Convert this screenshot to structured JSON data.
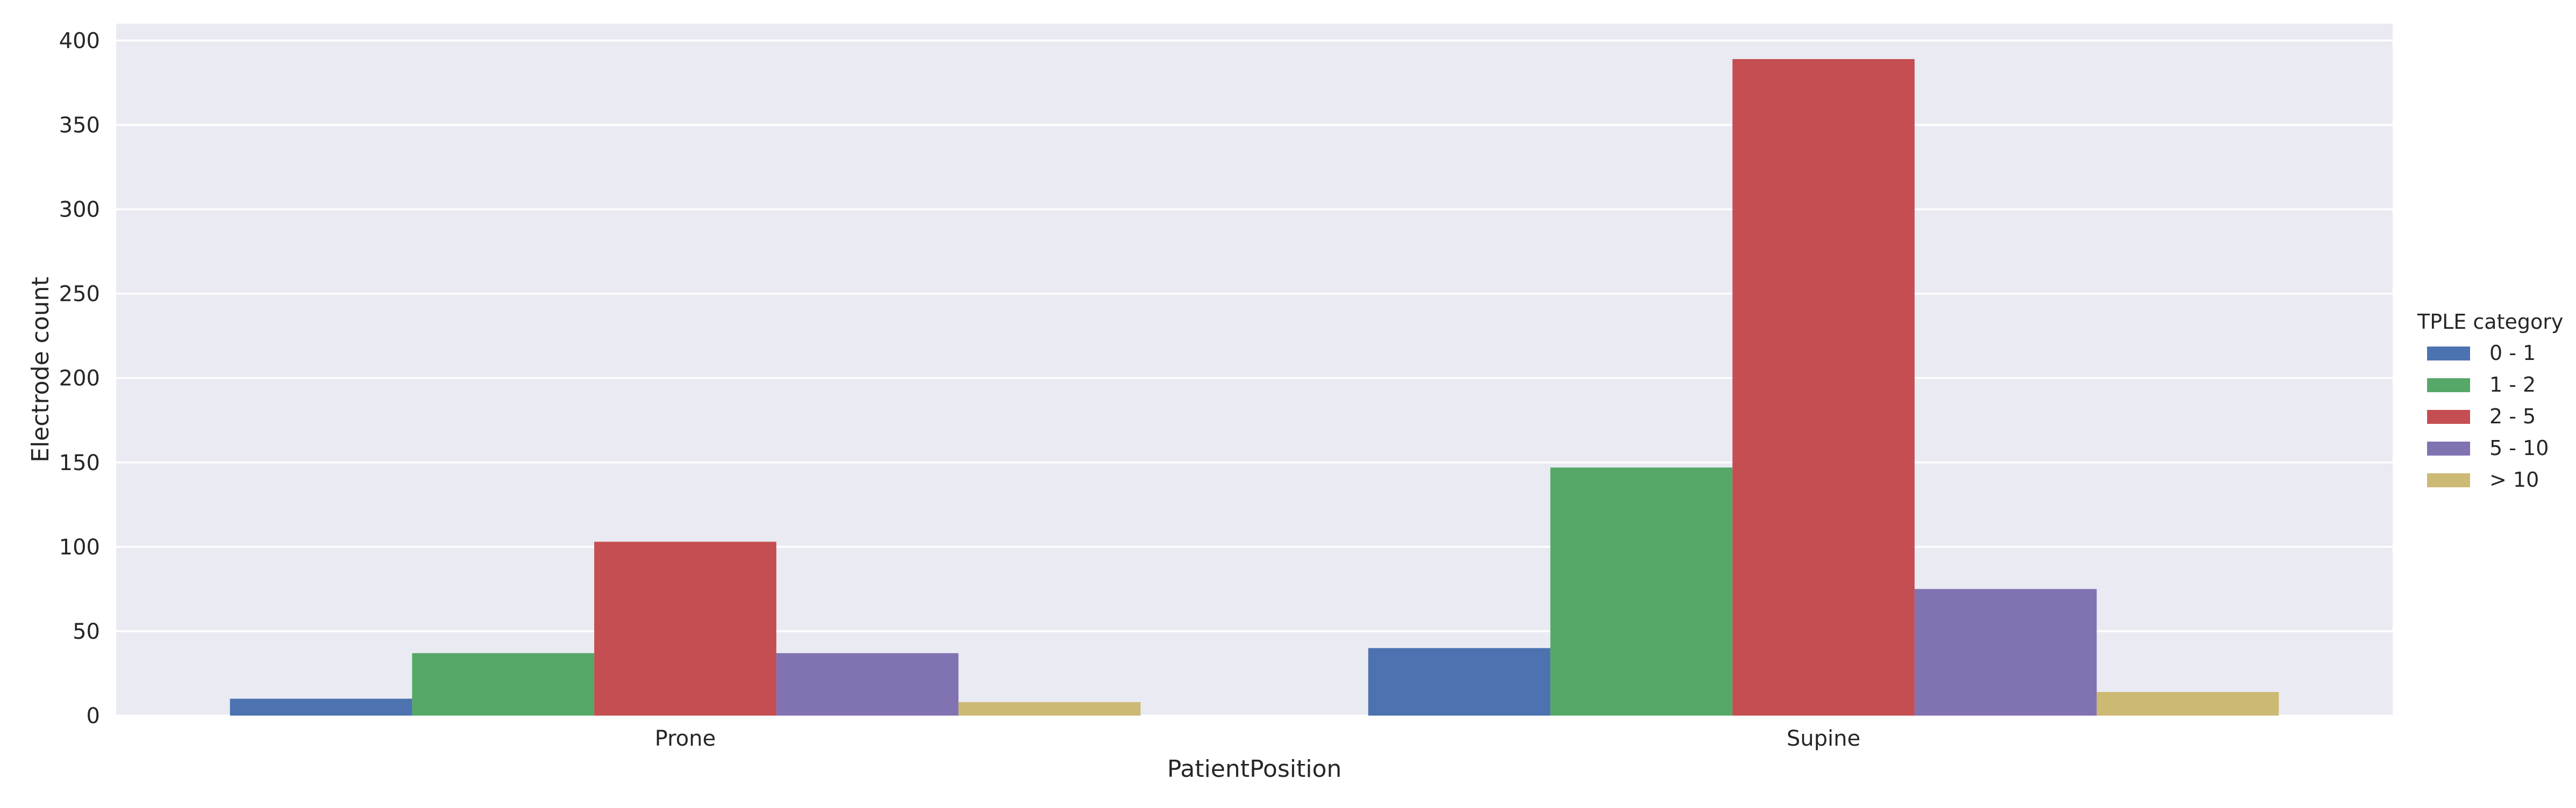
{
  "chart_data": {
    "type": "bar",
    "title": "",
    "xlabel": "PatientPosition",
    "ylabel": "Electrode count",
    "categories": [
      "Prone",
      "Supine"
    ],
    "ylim": [
      0,
      410
    ],
    "yticks": [
      0,
      50,
      100,
      150,
      200,
      250,
      300,
      350,
      400
    ],
    "grid": true,
    "legend": {
      "title": "TPLE category",
      "placement": "right"
    },
    "series": [
      {
        "name": "0 - 1",
        "color": "#4c72b0",
        "values": [
          10,
          40
        ]
      },
      {
        "name": "1 - 2",
        "color": "#55a868",
        "values": [
          37,
          147
        ]
      },
      {
        "name": "2 - 5",
        "color": "#c44e52",
        "values": [
          103,
          389
        ]
      },
      {
        "name": "5 - 10",
        "color": "#8172b2",
        "values": [
          37,
          75
        ]
      },
      {
        "name": "> 10",
        "color": "#ccb974",
        "values": [
          8,
          14
        ]
      }
    ]
  }
}
